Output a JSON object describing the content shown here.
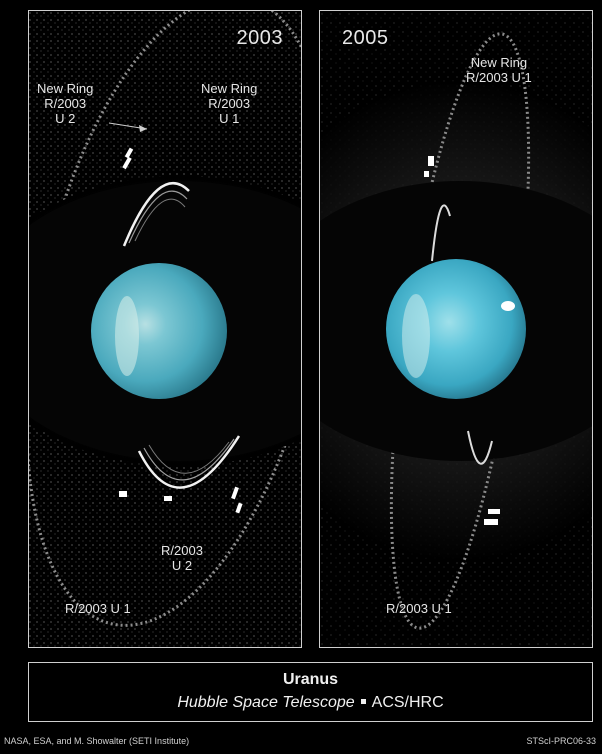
{
  "panels": {
    "left": {
      "year": "2003",
      "labels": {
        "new_ring_u2": "New Ring\nR/2003\nU 2",
        "new_ring_u1": "New Ring\nR/2003\nU 1",
        "bottom_u2": "R/2003\nU 2",
        "bottom_u1": "R/2003 U 1"
      }
    },
    "right": {
      "year": "2005",
      "labels": {
        "new_ring_u1": "New Ring\nR/2003 U 1",
        "bottom_u1": "R/2003 U 1"
      }
    }
  },
  "caption": {
    "title": "Uranus",
    "telescope": "Hubble Space Telescope",
    "instrument": "ACS/HRC"
  },
  "credits": {
    "left": "NASA, ESA, and M. Showalter (SETI Institute)",
    "right": "STScI-PRC06-33"
  },
  "colors": {
    "background": "#000000",
    "planet": "#5fb8c9",
    "ring": "#f2f2f2",
    "border": "#cfcfcf"
  }
}
